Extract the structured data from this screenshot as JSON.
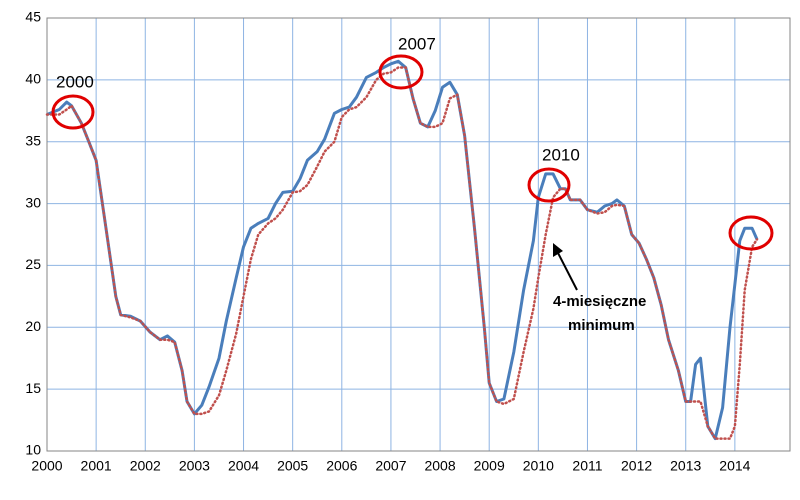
{
  "chart_data": {
    "type": "line",
    "x": [
      2000.0,
      2000.25,
      2000.4,
      2000.5,
      2000.7,
      2000.85,
      2001.0,
      2001.2,
      2001.4,
      2001.5,
      2001.7,
      2001.9,
      2002.1,
      2002.3,
      2002.45,
      2002.6,
      2002.75,
      2002.85,
      2003.0,
      2003.15,
      2003.3,
      2003.5,
      2003.65,
      2003.85,
      2004.0,
      2004.15,
      2004.3,
      2004.5,
      2004.65,
      2004.8,
      2005.0,
      2005.15,
      2005.3,
      2005.5,
      2005.65,
      2005.85,
      2006.0,
      2006.15,
      2006.3,
      2006.5,
      2006.7,
      2006.85,
      2007.0,
      2007.15,
      2007.3,
      2007.45,
      2007.6,
      2007.75,
      2007.9,
      2008.05,
      2008.2,
      2008.35,
      2008.5,
      2008.7,
      2008.9,
      2009.0,
      2009.15,
      2009.3,
      2009.5,
      2009.7,
      2009.9,
      2010.0,
      2010.15,
      2010.3,
      2010.45,
      2010.55,
      2010.65,
      2010.85,
      2011.0,
      2011.2,
      2011.35,
      2011.5,
      2011.6,
      2011.75,
      2011.9,
      2012.05,
      2012.2,
      2012.35,
      2012.5,
      2012.65,
      2012.85,
      2013.0,
      2013.1,
      2013.2,
      2013.3,
      2013.45,
      2013.6,
      2013.75,
      2013.9,
      2014.0,
      2014.1,
      2014.2,
      2014.35,
      2014.45
    ],
    "series": [
      {
        "color": "#4a7ebb",
        "dash": false,
        "values": [
          37.2,
          37.6,
          38.2,
          37.9,
          36.5,
          35,
          33.5,
          28,
          22.5,
          21,
          20.9,
          20.5,
          19.6,
          19,
          19.3,
          18.8,
          16.5,
          14,
          13,
          13.7,
          15.2,
          17.5,
          20.5,
          24,
          26.5,
          28,
          28.4,
          28.8,
          30,
          30.9,
          31,
          32,
          33.5,
          34.2,
          35.2,
          37.3,
          37.6,
          37.8,
          38.6,
          40.2,
          40.6,
          41,
          41.3,
          41.5,
          41,
          38.5,
          36.5,
          36.2,
          37.5,
          39.4,
          39.8,
          38.8,
          35.5,
          28,
          20,
          15.5,
          14,
          14.2,
          18,
          23,
          27,
          30.5,
          32.4,
          32.4,
          31.2,
          31.2,
          30.3,
          30.3,
          29.5,
          29.3,
          29.8,
          30,
          30.3,
          29.8,
          27.5,
          26.8,
          25.5,
          24,
          21.8,
          19,
          16.5,
          14,
          14,
          17,
          17.5,
          12,
          11,
          13.5,
          20,
          23.5,
          27,
          28,
          28,
          27.1
        ]
      },
      {
        "color": "#c0504d",
        "dash": true,
        "values": [
          37.2,
          37.2,
          37.6,
          37.9,
          36.5,
          35,
          33.5,
          28,
          22.5,
          21,
          20.8,
          20.5,
          19.6,
          19,
          19,
          18.8,
          16.5,
          14,
          13,
          13,
          13.2,
          14.5,
          16.5,
          19.5,
          22.5,
          25.5,
          27.5,
          28.4,
          28.8,
          29.5,
          30.9,
          31,
          31.5,
          33,
          34.2,
          35,
          37,
          37.6,
          37.8,
          38.6,
          40,
          40.5,
          40.6,
          41,
          41,
          38.5,
          36.5,
          36.2,
          36.2,
          36.5,
          38.5,
          38.8,
          35.5,
          28,
          20,
          15.5,
          14,
          13.8,
          14.2,
          18,
          21.5,
          24,
          27.5,
          30.5,
          31.2,
          31.2,
          30.3,
          30.3,
          29.5,
          29.2,
          29.3,
          29.8,
          29.9,
          29.8,
          27.5,
          26.8,
          25.5,
          24,
          21.8,
          19,
          16.5,
          14,
          14,
          14,
          14,
          12,
          11,
          11,
          11,
          12,
          17,
          23,
          26.5,
          27.1
        ]
      }
    ],
    "xlim": [
      2000,
      2015
    ],
    "xticks": [
      2000,
      2001,
      2002,
      2003,
      2004,
      2005,
      2006,
      2007,
      2008,
      2009,
      2010,
      2011,
      2012,
      2013,
      2014
    ],
    "ylim": [
      10,
      45
    ],
    "yticks": [
      10,
      15,
      20,
      25,
      30,
      35,
      40,
      45
    ],
    "grid": true,
    "annotations": [
      "2000",
      "2007",
      "2010",
      "4-miesięczne",
      "minimum"
    ]
  }
}
